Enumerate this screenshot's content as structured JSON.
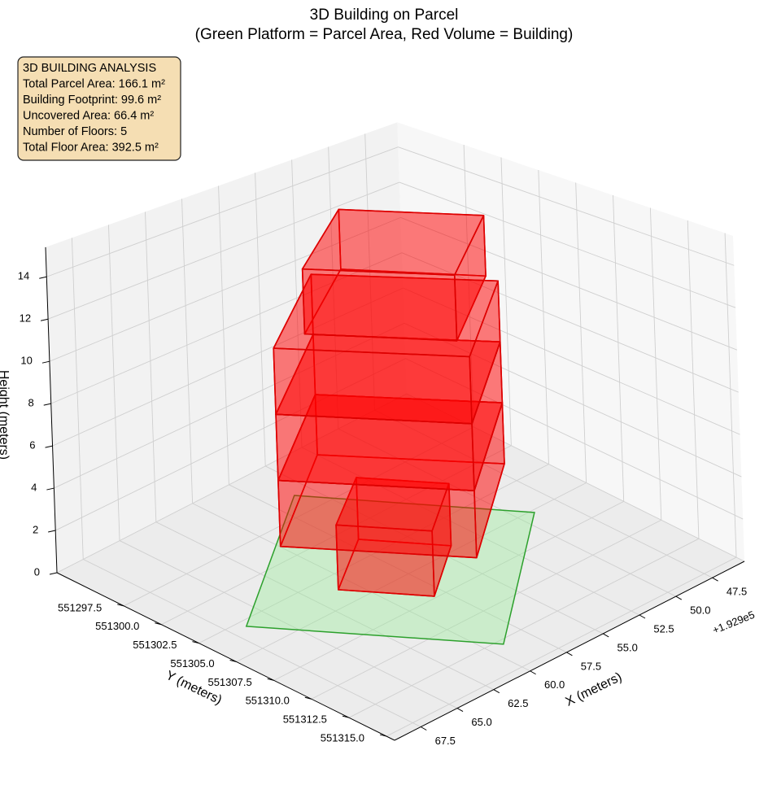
{
  "chart_data": {
    "type": "bar3d",
    "title": "3D Building on Parcel",
    "subtitle": "(Green Platform = Parcel Area, Red Volume = Building)",
    "annotation": [
      "3D BUILDING ANALYSIS",
      "Total Parcel Area: 166.1 m²",
      "Building Footprint: 99.6 m²",
      "Uncovered Area: 66.4 m²",
      "Number of Floors: 5",
      "Total Floor Area: 392.5 m²"
    ],
    "x_label": "X (meters)",
    "y_label": "Y (meters)",
    "z_label": "Height (meters)",
    "x_offset_label": "+1.929e5",
    "xlim": [
      192945.3,
      192969.3
    ],
    "xticks": [
      {
        "value": 192947.5,
        "label": "47.5"
      },
      {
        "value": 192950,
        "label": "50.0"
      },
      {
        "value": 192952.5,
        "label": "52.5"
      },
      {
        "value": 192955,
        "label": "55.0"
      },
      {
        "value": 192957.5,
        "label": "57.5"
      },
      {
        "value": 192960,
        "label": "60.0"
      },
      {
        "value": 192962.5,
        "label": "62.5"
      },
      {
        "value": 192965,
        "label": "65.0"
      },
      {
        "value": 192967.5,
        "label": "67.5"
      }
    ],
    "ylim": [
      551293.04,
      551315.54
    ],
    "yticks": [
      551297.5,
      {
        "value": 551300,
        "label": "551300.0"
      },
      551302.5,
      {
        "value": 551305,
        "label": "551305.0"
      },
      551307.5,
      {
        "value": 551310,
        "label": "551310.0"
      },
      551312.5,
      {
        "value": 551315,
        "label": "551315.0"
      }
    ],
    "zlim": [
      0,
      15.4
    ],
    "zticks": [
      0,
      2,
      4,
      6,
      8,
      10,
      12,
      14
    ],
    "grid": true,
    "parcel": {
      "color": "#2ca02c",
      "fill": "#90ee90",
      "x": [
        192966.55,
        192959.08,
        192949.07,
        192956.02
      ],
      "y": [
        551302.99,
        551312.87,
        551305.21,
        551295.96
      ]
    },
    "floor_color": "#ff0000",
    "edge_color": "#dd0000",
    "floors": [
      {
        "x": [
          192960.95,
          192958.15,
          192954.15,
          192956.84
        ],
        "y": [
          551303.68,
          551307.36,
          551304.59,
          551301.03
        ],
        "z": [
          0,
          3
        ]
      },
      {
        "x": [
          192964.38,
          192958.58,
          192950.84,
          192956.5
        ],
        "y": [
          551303.31,
          551310.75,
          551305.07,
          551298.1
        ],
        "z": [
          3,
          6
        ]
      },
      {
        "x": [
          192964.38,
          192958.58,
          192950.84,
          192956.5
        ],
        "y": [
          551303.31,
          551310.75,
          551305.07,
          551298.1
        ],
        "z": [
          6,
          9
        ]
      },
      {
        "x": [
          192964.38,
          192958.58,
          192950.84,
          192956.5
        ],
        "y": [
          551303.31,
          551310.75,
          551305.07,
          551298.1
        ],
        "z": [
          9,
          12
        ]
      },
      {
        "x": [
          192962.06,
          192957.58,
          192950.81,
          192955.05
        ],
        "y": [
          551303.12,
          551308.92,
          551304.22,
          551298.67
        ],
        "z": [
          12,
          15
        ]
      }
    ]
  }
}
